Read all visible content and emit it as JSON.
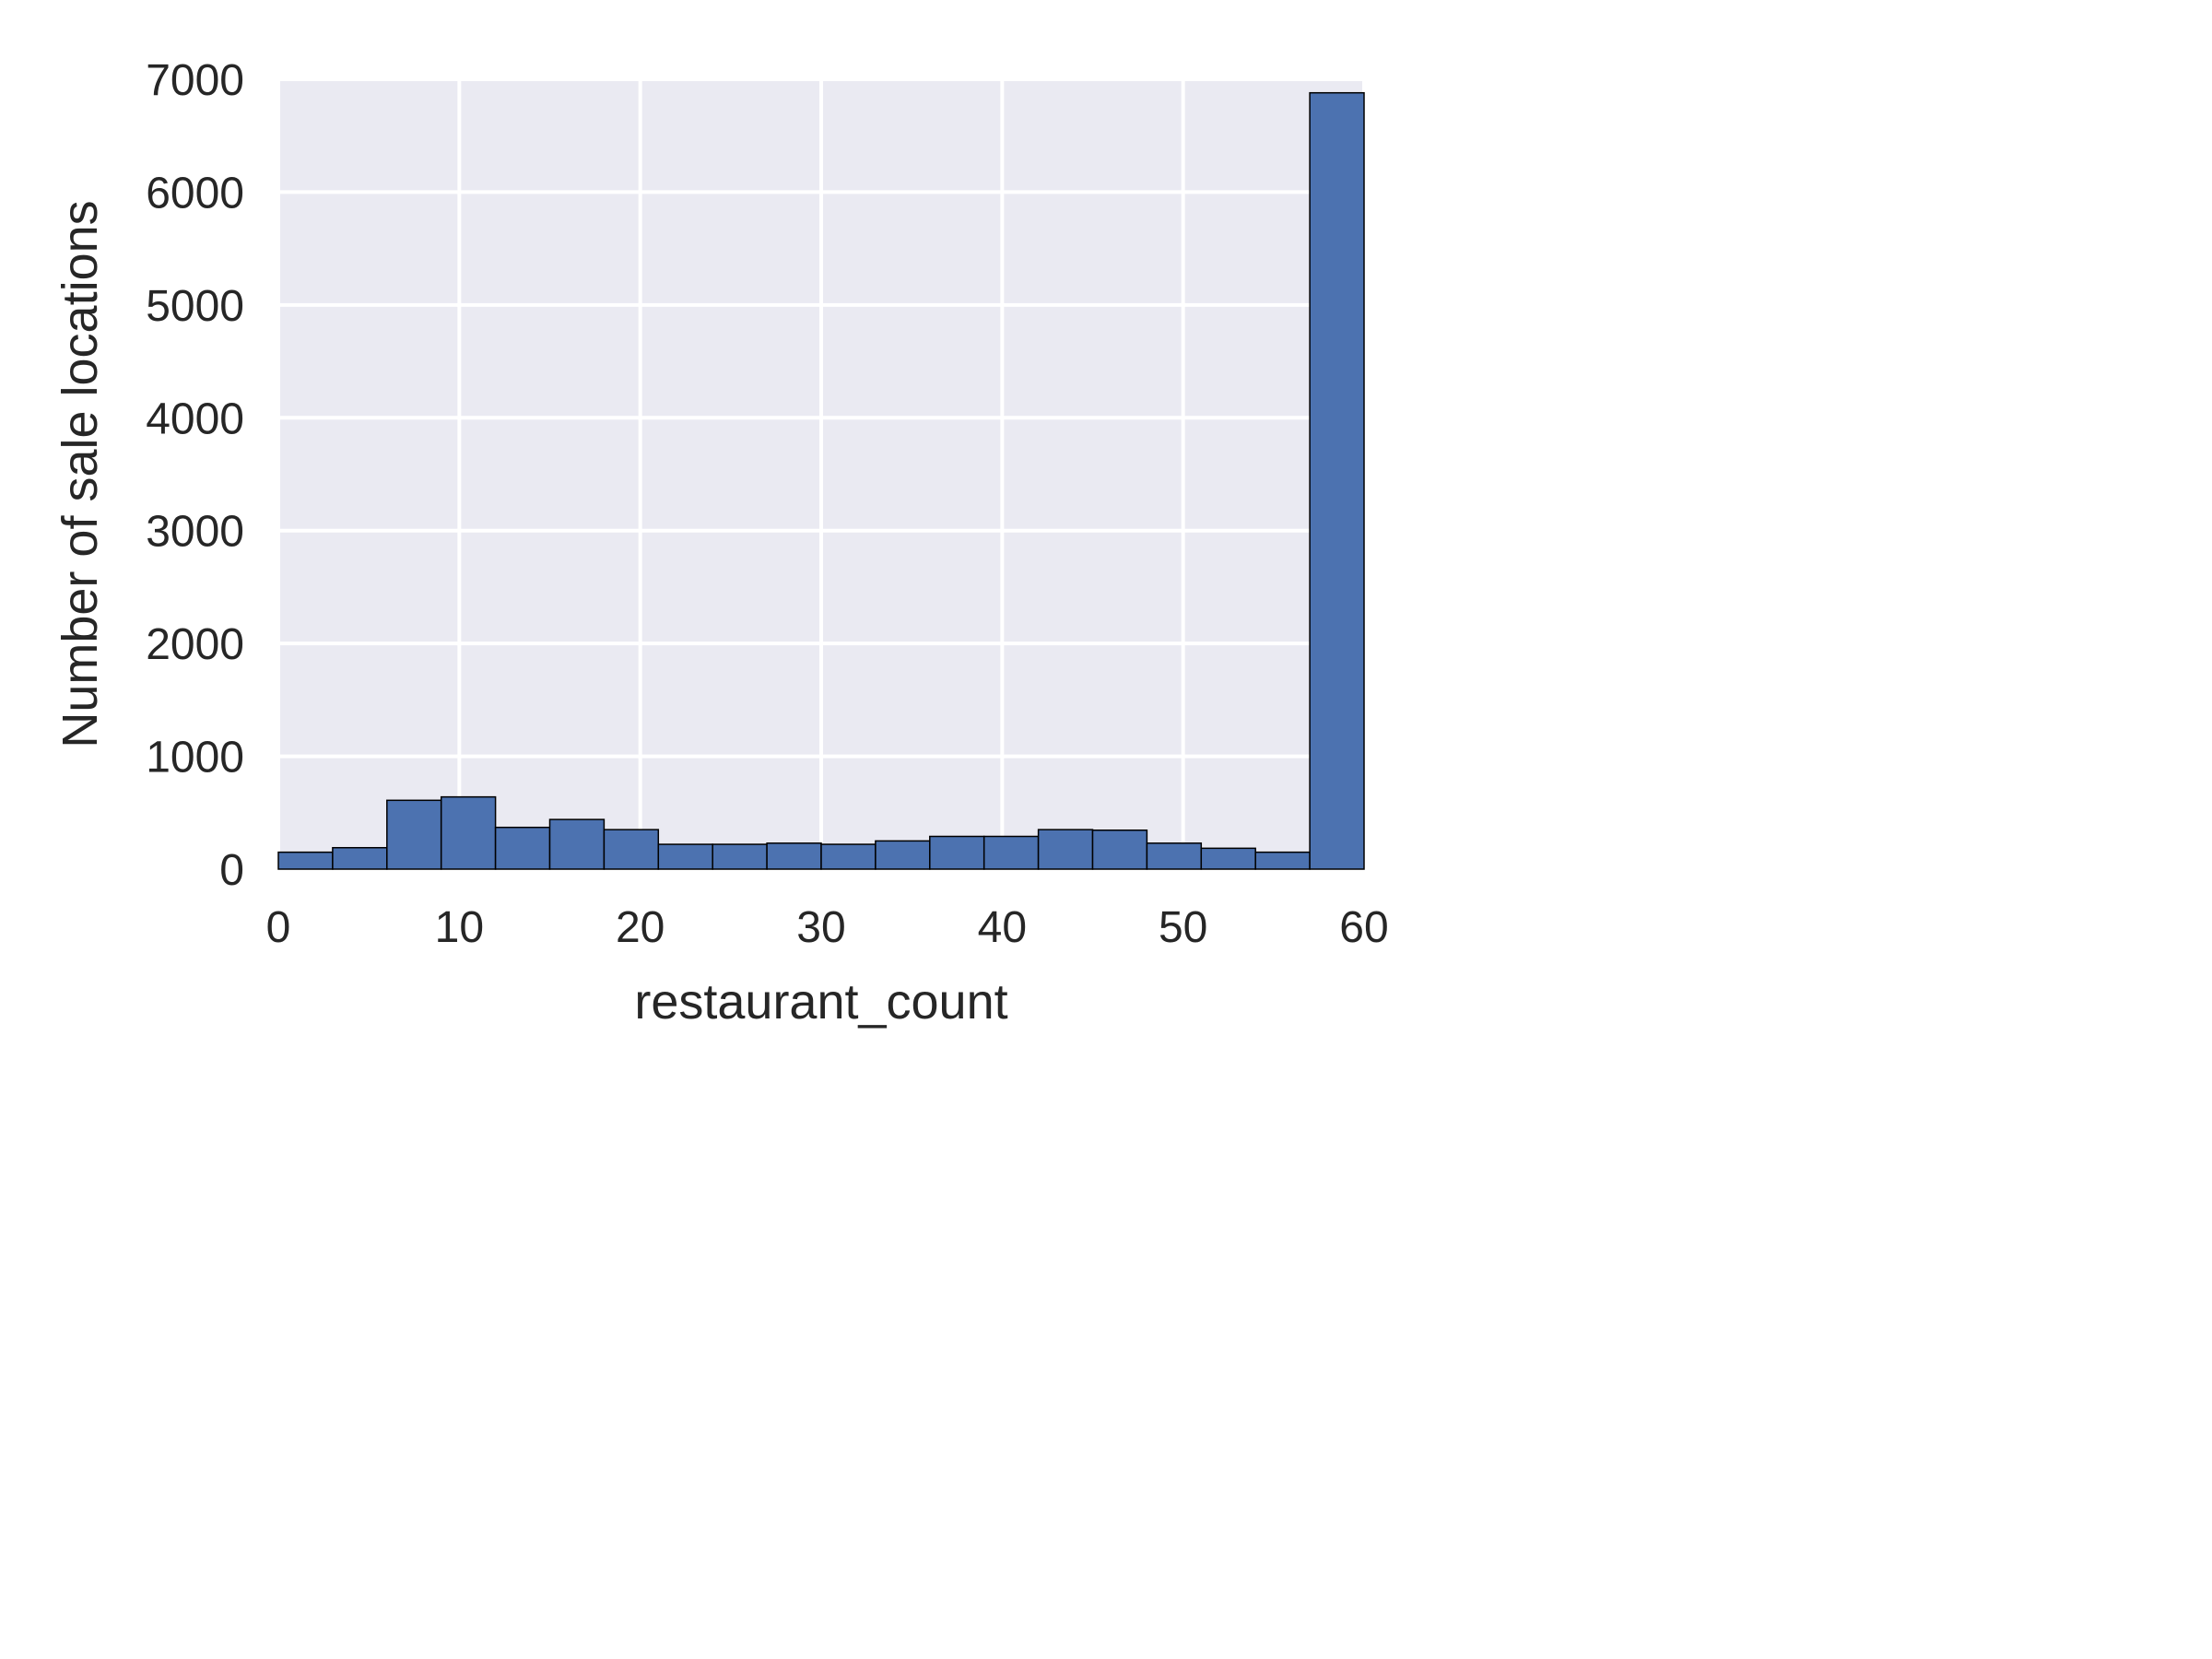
{
  "chart_data": {
    "type": "bar",
    "subtype": "histogram",
    "xlabel": "restaurant_count",
    "ylabel": "Number of sale locations",
    "xlim": [
      0,
      60
    ],
    "ylim": [
      0,
      7000
    ],
    "xticks": [
      0,
      10,
      20,
      30,
      40,
      50,
      60
    ],
    "yticks": [
      0,
      1000,
      2000,
      3000,
      4000,
      5000,
      6000,
      7000
    ],
    "grid": true,
    "background_color": "#eaeaf2",
    "bar_color": "#4c72b0",
    "bin_edges": [
      0,
      3,
      6,
      9,
      12,
      15,
      18,
      21,
      24,
      27,
      30,
      33,
      36,
      39,
      42,
      45,
      48,
      51,
      54,
      57,
      60
    ],
    "values": [
      150,
      190,
      610,
      640,
      370,
      440,
      350,
      220,
      220,
      230,
      220,
      250,
      290,
      290,
      350,
      345,
      230,
      185,
      150,
      6880
    ]
  }
}
